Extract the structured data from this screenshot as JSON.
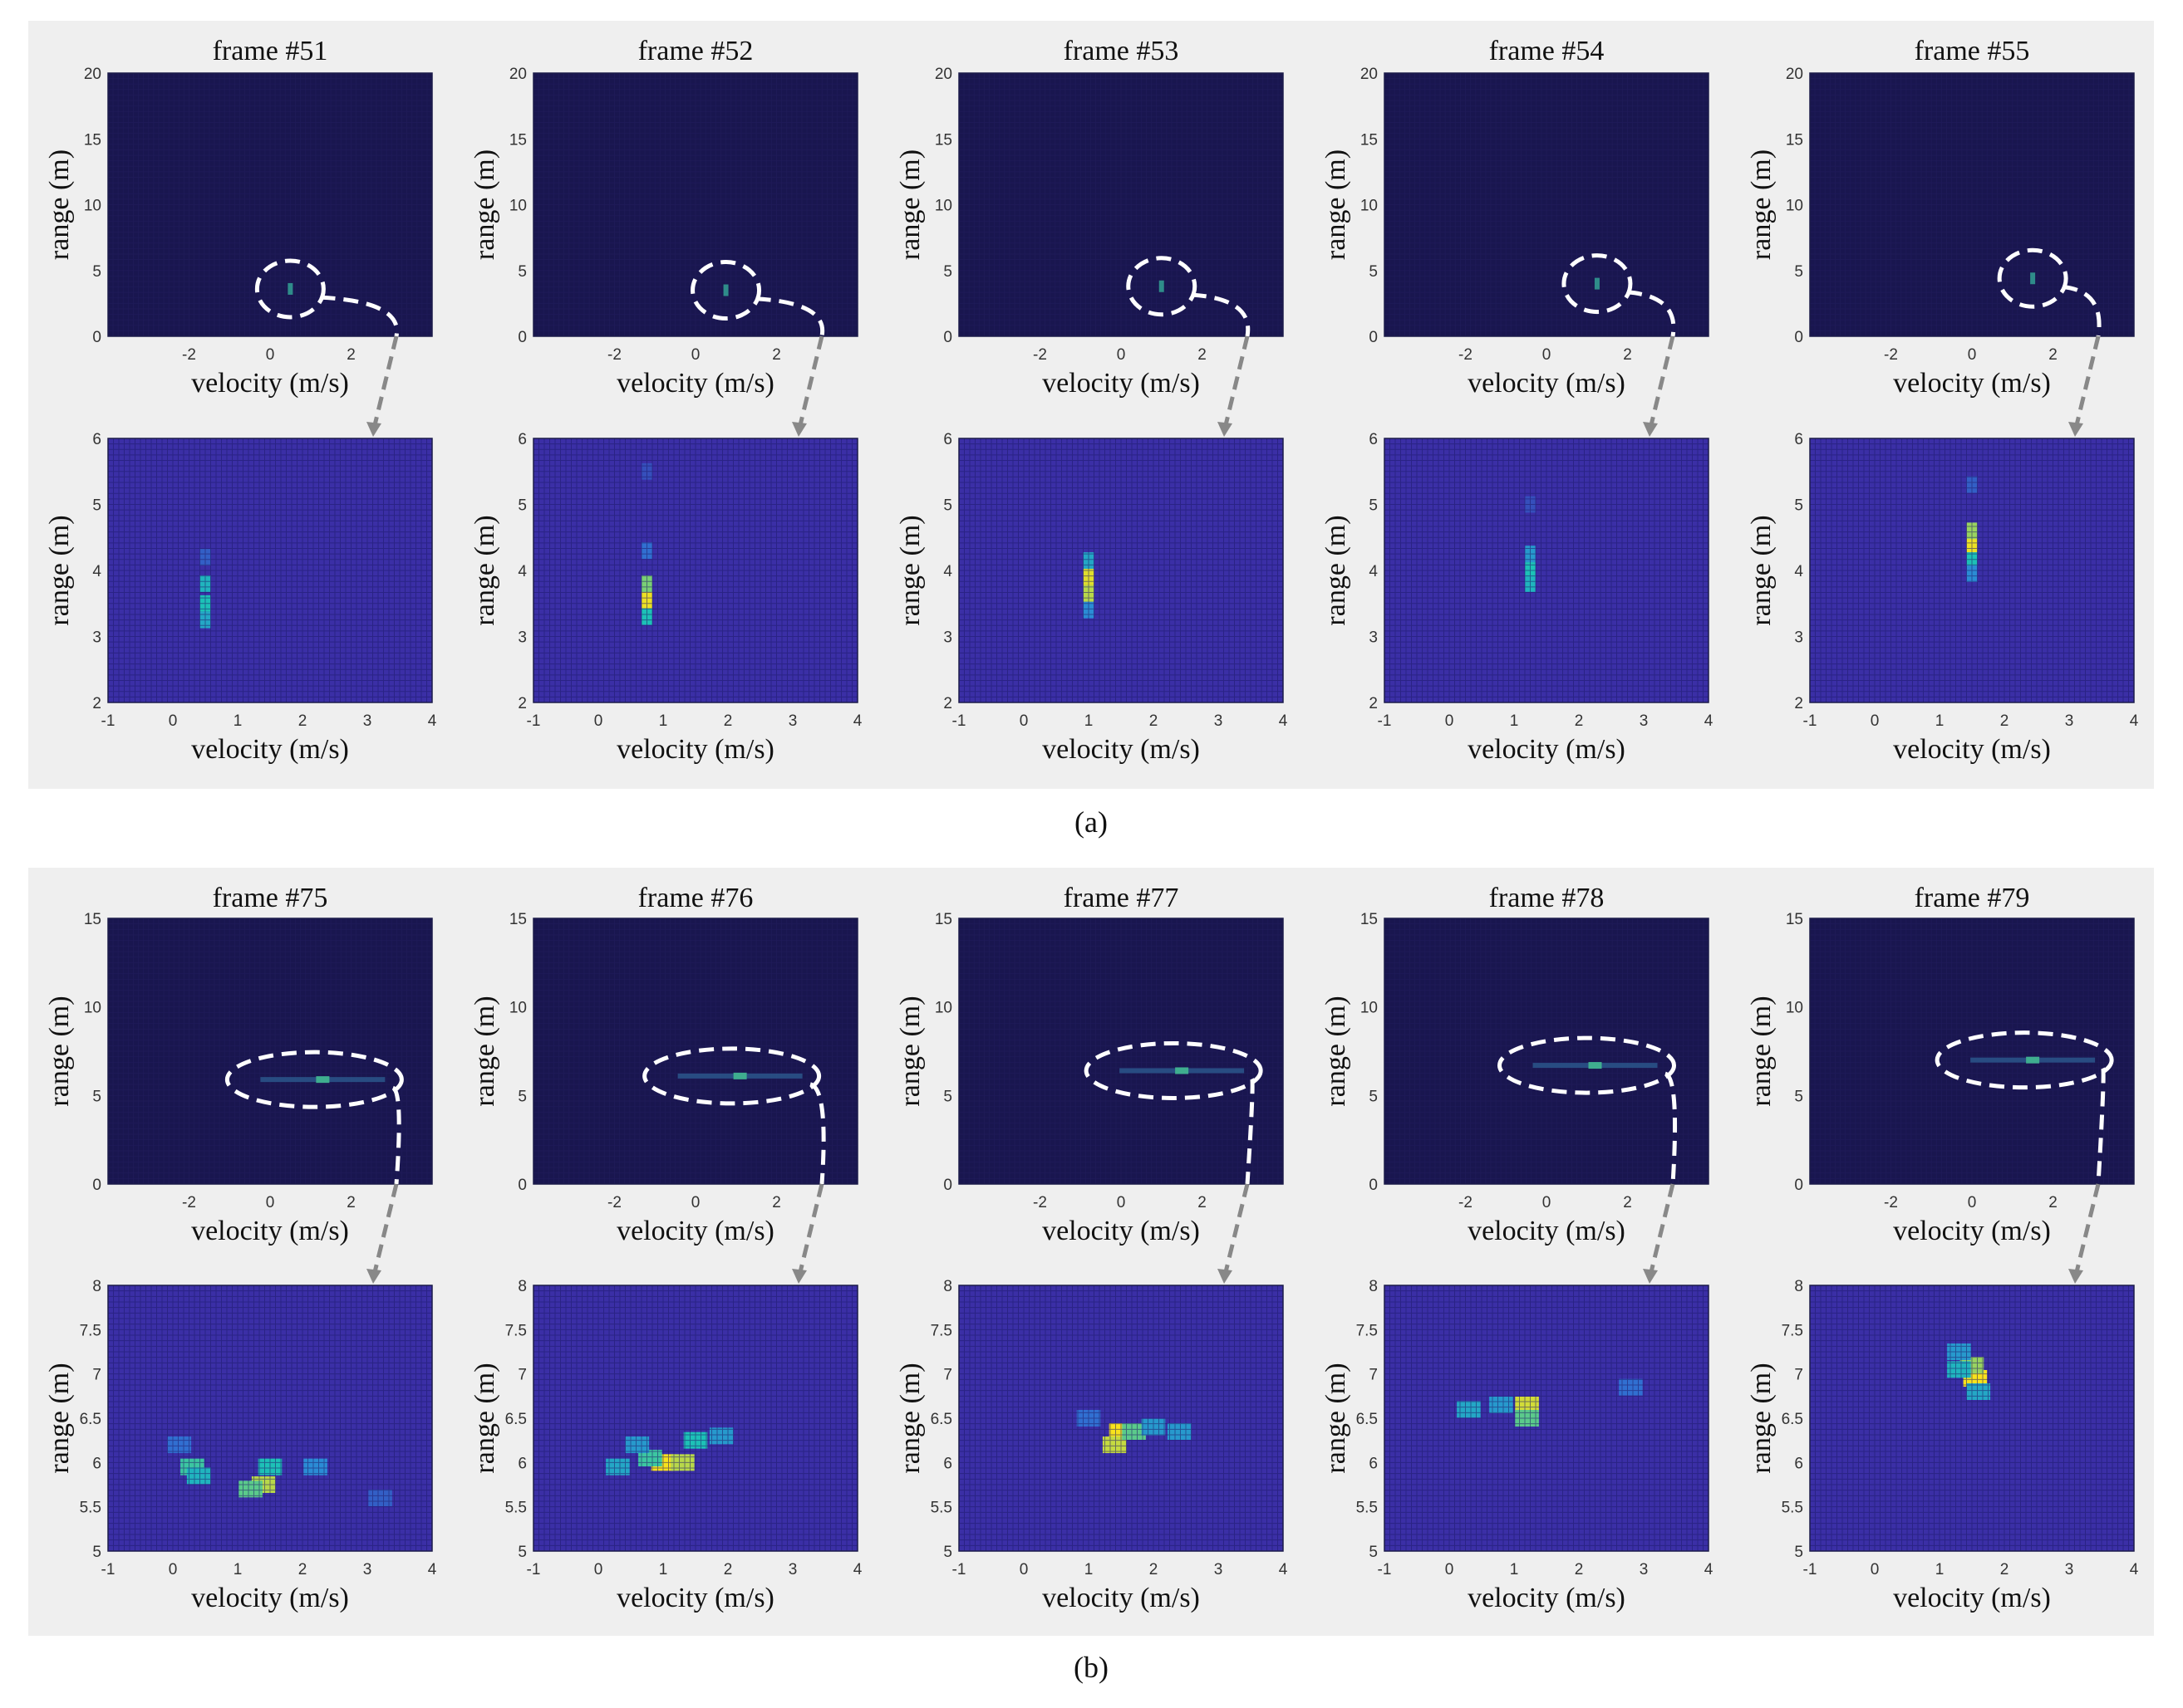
{
  "colors": {
    "panel_background": "#efefef",
    "heatmap_floor_overview": "#19164f",
    "heatmap_floor_zoom": "#3b2fa6",
    "colormap": [
      "#3b2fa6",
      "#2e7fdc",
      "#1dc1b7",
      "#b8d84a",
      "#f9e21c"
    ]
  },
  "chart_data": [
    {
      "panel": "(a)",
      "type": "heatmap",
      "frames": [
        {
          "title": "frame #51",
          "overview": {
            "xlabel": "velocity (m/s)",
            "ylabel": "range (m)",
            "xlim": [
              -4,
              4
            ],
            "ylim": [
              0,
              20
            ],
            "xticks": [
              "-2",
              "0",
              "2"
            ],
            "yticks": [
              "0",
              "5",
              "10",
              "15",
              "20"
            ],
            "target": {
              "velocity": 0.5,
              "range": 3.6
            }
          },
          "zoom": {
            "xlabel": "velocity (m/s)",
            "ylabel": "range (m)",
            "xlim": [
              -1,
              4
            ],
            "ylim": [
              2,
              6
            ],
            "xticks": [
              "-1",
              "0",
              "1",
              "2",
              "3",
              "4"
            ],
            "yticks": [
              "2",
              "3",
              "4",
              "5",
              "6"
            ],
            "hotspots": [
              {
                "velocity": 0.5,
                "range": 3.5,
                "intensity": 0.5
              },
              {
                "velocity": 0.5,
                "range": 3.8,
                "intensity": 0.45
              },
              {
                "velocity": 0.5,
                "range": 3.25,
                "intensity": 0.4
              },
              {
                "velocity": 0.5,
                "range": 4.2,
                "intensity": 0.15
              }
            ]
          }
        },
        {
          "title": "frame #52",
          "overview": {
            "xlabel": "velocity (m/s)",
            "ylabel": "range (m)",
            "xlim": [
              -4,
              4
            ],
            "ylim": [
              0,
              20
            ],
            "xticks": [
              "-2",
              "0",
              "2"
            ],
            "yticks": [
              "0",
              "5",
              "10",
              "15",
              "20"
            ],
            "target": {
              "velocity": 0.75,
              "range": 3.5
            }
          },
          "zoom": {
            "xlabel": "velocity (m/s)",
            "ylabel": "range (m)",
            "xlim": [
              -1,
              4
            ],
            "ylim": [
              2,
              6
            ],
            "xticks": [
              "-1",
              "0",
              "1",
              "2",
              "3",
              "4"
            ],
            "yticks": [
              "2",
              "3",
              "4",
              "5",
              "6"
            ],
            "hotspots": [
              {
                "velocity": 0.75,
                "range": 3.55,
                "intensity": 0.95
              },
              {
                "velocity": 0.75,
                "range": 3.8,
                "intensity": 0.65
              },
              {
                "velocity": 0.75,
                "range": 3.3,
                "intensity": 0.5
              },
              {
                "velocity": 0.75,
                "range": 4.3,
                "intensity": 0.2
              },
              {
                "velocity": 0.75,
                "range": 5.5,
                "intensity": 0.1
              }
            ]
          }
        },
        {
          "title": "frame #53",
          "overview": {
            "xlabel": "velocity (m/s)",
            "ylabel": "range (m)",
            "xlim": [
              -4,
              4
            ],
            "ylim": [
              0,
              20
            ],
            "xticks": [
              "-2",
              "0",
              "2"
            ],
            "yticks": [
              "0",
              "5",
              "10",
              "15",
              "20"
            ],
            "target": {
              "velocity": 1.0,
              "range": 3.8
            }
          },
          "zoom": {
            "xlabel": "velocity (m/s)",
            "ylabel": "range (m)",
            "xlim": [
              -1,
              4
            ],
            "ylim": [
              2,
              6
            ],
            "xticks": [
              "-1",
              "0",
              "1",
              "2",
              "3",
              "4"
            ],
            "yticks": [
              "2",
              "3",
              "4",
              "5",
              "6"
            ],
            "hotspots": [
              {
                "velocity": 1.0,
                "range": 3.9,
                "intensity": 0.9
              },
              {
                "velocity": 1.0,
                "range": 3.65,
                "intensity": 0.75
              },
              {
                "velocity": 1.0,
                "range": 4.15,
                "intensity": 0.4
              },
              {
                "velocity": 1.0,
                "range": 3.4,
                "intensity": 0.3
              }
            ]
          }
        },
        {
          "title": "frame #54",
          "overview": {
            "xlabel": "velocity (m/s)",
            "ylabel": "range (m)",
            "xlim": [
              -4,
              4
            ],
            "ylim": [
              0,
              20
            ],
            "xticks": [
              "-2",
              "0",
              "2"
            ],
            "yticks": [
              "0",
              "5",
              "10",
              "15",
              "20"
            ],
            "target": {
              "velocity": 1.25,
              "range": 4.0
            }
          },
          "zoom": {
            "xlabel": "velocity (m/s)",
            "ylabel": "range (m)",
            "xlim": [
              -1,
              4
            ],
            "ylim": [
              2,
              6
            ],
            "xticks": [
              "-1",
              "0",
              "1",
              "2",
              "3",
              "4"
            ],
            "yticks": [
              "2",
              "3",
              "4",
              "5",
              "6"
            ],
            "hotspots": [
              {
                "velocity": 1.25,
                "range": 4.0,
                "intensity": 0.5
              },
              {
                "velocity": 1.25,
                "range": 3.8,
                "intensity": 0.45
              },
              {
                "velocity": 1.25,
                "range": 4.25,
                "intensity": 0.35
              },
              {
                "velocity": 1.25,
                "range": 5.0,
                "intensity": 0.1
              }
            ]
          }
        },
        {
          "title": "frame #55",
          "overview": {
            "xlabel": "velocity (m/s)",
            "ylabel": "range (m)",
            "xlim": [
              -4,
              4
            ],
            "ylim": [
              0,
              20
            ],
            "xticks": [
              "-2",
              "0",
              "2"
            ],
            "yticks": [
              "0",
              "5",
              "10",
              "15",
              "20"
            ],
            "target": {
              "velocity": 1.5,
              "range": 4.4
            }
          },
          "zoom": {
            "xlabel": "velocity (m/s)",
            "ylabel": "range (m)",
            "xlim": [
              -1,
              4
            ],
            "ylim": [
              2,
              6
            ],
            "xticks": [
              "-1",
              "0",
              "1",
              "2",
              "3",
              "4"
            ],
            "yticks": [
              "2",
              "3",
              "4",
              "5",
              "6"
            ],
            "hotspots": [
              {
                "velocity": 1.5,
                "range": 4.4,
                "intensity": 0.95
              },
              {
                "velocity": 1.5,
                "range": 4.6,
                "intensity": 0.7
              },
              {
                "velocity": 1.5,
                "range": 4.15,
                "intensity": 0.5
              },
              {
                "velocity": 1.5,
                "range": 3.95,
                "intensity": 0.3
              },
              {
                "velocity": 1.5,
                "range": 5.3,
                "intensity": 0.15
              }
            ]
          }
        }
      ]
    },
    {
      "panel": "(b)",
      "type": "heatmap",
      "frames": [
        {
          "title": "frame #75",
          "overview": {
            "xlabel": "velocity (m/s)",
            "ylabel": "range (m)",
            "xlim": [
              -4,
              4
            ],
            "ylim": [
              0,
              15
            ],
            "xticks": [
              "-2",
              "0",
              "2"
            ],
            "yticks": [
              "0",
              "5",
              "10",
              "15"
            ],
            "target": {
              "velocity": 1.3,
              "range": 5.9
            }
          },
          "zoom": {
            "xlabel": "velocity (m/s)",
            "ylabel": "range (m)",
            "xlim": [
              -1,
              4
            ],
            "ylim": [
              5,
              8
            ],
            "xticks": [
              "-1",
              "0",
              "1",
              "2",
              "3",
              "4"
            ],
            "yticks": [
              "5",
              "5.5",
              "6",
              "6.5",
              "7",
              "7.5",
              "8"
            ],
            "hotspots": [
              {
                "velocity": 1.4,
                "range": 5.75,
                "intensity": 0.75
              },
              {
                "velocity": 1.2,
                "range": 5.7,
                "intensity": 0.6
              },
              {
                "velocity": 1.5,
                "range": 5.95,
                "intensity": 0.5
              },
              {
                "velocity": 0.3,
                "range": 5.95,
                "intensity": 0.55
              },
              {
                "velocity": 0.4,
                "range": 5.85,
                "intensity": 0.45
              },
              {
                "velocity": 2.2,
                "range": 5.95,
                "intensity": 0.3
              },
              {
                "velocity": 0.1,
                "range": 6.2,
                "intensity": 0.2
              },
              {
                "velocity": 3.2,
                "range": 5.6,
                "intensity": 0.15
              }
            ]
          }
        },
        {
          "title": "frame #76",
          "overview": {
            "xlabel": "velocity (m/s)",
            "ylabel": "range (m)",
            "xlim": [
              -4,
              4
            ],
            "ylim": [
              0,
              15
            ],
            "xticks": [
              "-2",
              "0",
              "2"
            ],
            "yticks": [
              "0",
              "5",
              "10",
              "15"
            ],
            "target": {
              "velocity": 1.1,
              "range": 6.1
            }
          },
          "zoom": {
            "xlabel": "velocity (m/s)",
            "ylabel": "range (m)",
            "xlim": [
              -1,
              4
            ],
            "ylim": [
              5,
              8
            ],
            "xticks": [
              "-1",
              "0",
              "1",
              "2",
              "3",
              "4"
            ],
            "yticks": [
              "5",
              "5.5",
              "6",
              "6.5",
              "7",
              "7.5",
              "8"
            ],
            "hotspots": [
              {
                "velocity": 1.0,
                "range": 6.0,
                "intensity": 1.0
              },
              {
                "velocity": 1.3,
                "range": 6.0,
                "intensity": 0.75
              },
              {
                "velocity": 0.8,
                "range": 6.05,
                "intensity": 0.55
              },
              {
                "velocity": 1.5,
                "range": 6.25,
                "intensity": 0.5
              },
              {
                "velocity": 0.3,
                "range": 5.95,
                "intensity": 0.4
              },
              {
                "velocity": 1.9,
                "range": 6.3,
                "intensity": 0.35
              },
              {
                "velocity": 0.6,
                "range": 6.2,
                "intensity": 0.35
              }
            ]
          }
        },
        {
          "title": "frame #77",
          "overview": {
            "xlabel": "velocity (m/s)",
            "ylabel": "range (m)",
            "xlim": [
              -4,
              4
            ],
            "ylim": [
              0,
              15
            ],
            "xticks": [
              "-2",
              "0",
              "2"
            ],
            "yticks": [
              "0",
              "5",
              "10",
              "15"
            ],
            "target": {
              "velocity": 1.5,
              "range": 6.4
            }
          },
          "zoom": {
            "xlabel": "velocity (m/s)",
            "ylabel": "range (m)",
            "xlim": [
              -1,
              4
            ],
            "ylim": [
              5,
              8
            ],
            "xticks": [
              "-1",
              "0",
              "1",
              "2",
              "3",
              "4"
            ],
            "yticks": [
              "5",
              "5.5",
              "6",
              "6.5",
              "7",
              "7.5",
              "8"
            ],
            "hotspots": [
              {
                "velocity": 1.5,
                "range": 6.35,
                "intensity": 1.0
              },
              {
                "velocity": 1.4,
                "range": 6.2,
                "intensity": 0.8
              },
              {
                "velocity": 1.7,
                "range": 6.35,
                "intensity": 0.6
              },
              {
                "velocity": 2.0,
                "range": 6.4,
                "intensity": 0.35
              },
              {
                "velocity": 2.4,
                "range": 6.35,
                "intensity": 0.35
              },
              {
                "velocity": 1.0,
                "range": 6.5,
                "intensity": 0.2
              }
            ]
          }
        },
        {
          "title": "frame #78",
          "overview": {
            "xlabel": "velocity (m/s)",
            "ylabel": "range (m)",
            "xlim": [
              -4,
              4
            ],
            "ylim": [
              0,
              15
            ],
            "xticks": [
              "-2",
              "0",
              "2"
            ],
            "yticks": [
              "0",
              "5",
              "10",
              "15"
            ],
            "target": {
              "velocity": 1.2,
              "range": 6.7
            }
          },
          "zoom": {
            "xlabel": "velocity (m/s)",
            "ylabel": "range (m)",
            "xlim": [
              -1,
              4
            ],
            "ylim": [
              5,
              8
            ],
            "xticks": [
              "-1",
              "0",
              "1",
              "2",
              "3",
              "4"
            ],
            "yticks": [
              "5",
              "5.5",
              "6",
              "6.5",
              "7",
              "7.5",
              "8"
            ],
            "hotspots": [
              {
                "velocity": 1.2,
                "range": 6.65,
                "intensity": 0.85
              },
              {
                "velocity": 1.2,
                "range": 6.5,
                "intensity": 0.6
              },
              {
                "velocity": 0.3,
                "range": 6.6,
                "intensity": 0.4
              },
              {
                "velocity": 0.8,
                "range": 6.65,
                "intensity": 0.35
              },
              {
                "velocity": 2.8,
                "range": 6.85,
                "intensity": 0.2
              }
            ]
          }
        },
        {
          "title": "frame #79",
          "overview": {
            "xlabel": "velocity (m/s)",
            "ylabel": "range (m)",
            "xlim": [
              -4,
              4
            ],
            "ylim": [
              0,
              15
            ],
            "xticks": [
              "-2",
              "0",
              "2"
            ],
            "yticks": [
              "0",
              "5",
              "10",
              "15"
            ],
            "target": {
              "velocity": 1.5,
              "range": 7.0
            }
          },
          "zoom": {
            "xlabel": "velocity (m/s)",
            "ylabel": "range (m)",
            "xlim": [
              -1,
              4
            ],
            "ylim": [
              5,
              8
            ],
            "xticks": [
              "-1",
              "0",
              "1",
              "2",
              "3",
              "4"
            ],
            "yticks": [
              "5",
              "5.5",
              "6",
              "6.5",
              "7",
              "7.5",
              "8"
            ],
            "hotspots": [
              {
                "velocity": 1.55,
                "range": 6.95,
                "intensity": 1.0
              },
              {
                "velocity": 1.5,
                "range": 7.1,
                "intensity": 0.7
              },
              {
                "velocity": 1.3,
                "range": 7.05,
                "intensity": 0.45
              },
              {
                "velocity": 1.3,
                "range": 7.25,
                "intensity": 0.35
              },
              {
                "velocity": 1.6,
                "range": 6.8,
                "intensity": 0.4
              }
            ]
          }
        }
      ]
    }
  ]
}
